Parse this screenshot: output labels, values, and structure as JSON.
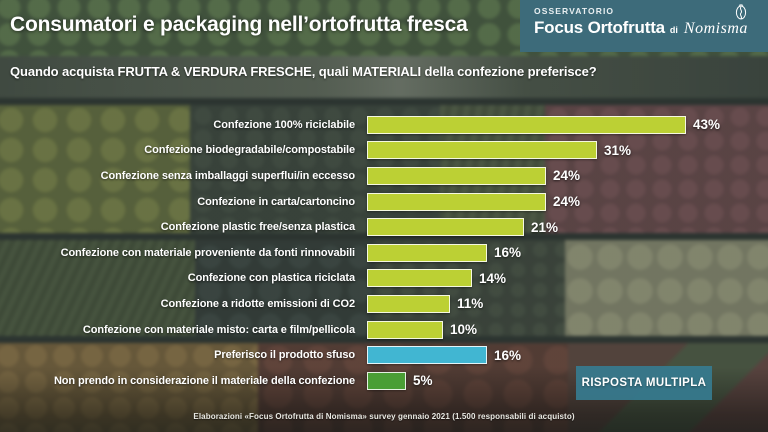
{
  "header": {
    "title": "Consumatori e packaging nell’ortofrutta fresca",
    "observatory": "OSSERVATORIO",
    "brand": "Focus Ortofrutta",
    "connector": "di",
    "logo_text": "Nomisma"
  },
  "question": "Quando acquista FRUTTA & VERDURA FRESCHE, quali MATERIALI della confezione preferisce?",
  "chart_data": {
    "type": "bar",
    "orientation": "horizontal",
    "title": "Quando acquista FRUTTA & VERDURA FRESCHE, quali MATERIALI della confezione preferisce?",
    "unit": "%",
    "xlim": [
      0,
      45
    ],
    "grid": false,
    "legend_position": "none",
    "categories": [
      "Confezione 100% riciclabile",
      "Confezione biodegradabile/compostabile",
      "Confezione senza imballaggi superflui/in eccesso",
      "Confezione in carta/cartoncino",
      "Confezione plastic free/senza plastica",
      "Confezione con materiale proveniente da fonti rinnovabili",
      "Confezione con plastica riciclata",
      "Confezione a ridotte emissioni di CO2",
      "Confezione con materiale misto: carta e film/pellicola",
      "Preferisco il prodotto sfuso",
      "Non prendo in considerazione il materiale della confezione"
    ],
    "values": [
      43,
      31,
      24,
      24,
      21,
      16,
      14,
      11,
      10,
      16,
      5
    ],
    "value_labels": [
      "43%",
      "31%",
      "24%",
      "24%",
      "21%",
      "16%",
      "14%",
      "11%",
      "10%",
      "16%",
      "5%"
    ],
    "bar_colors": [
      "#bcd034",
      "#bcd034",
      "#bcd034",
      "#bcd034",
      "#bcd034",
      "#bcd034",
      "#bcd034",
      "#bcd034",
      "#bcd034",
      "#41b6d2",
      "#4a9e35"
    ]
  },
  "badge": "RISPOSTA MULTIPLA",
  "footer": "Elaborazioni «Focus Ortofrutta di Nomisma» survey gennaio 2021 (1.500 responsabili di acquisto)",
  "colors": {
    "bar_default": "#bcd034",
    "bar_loose_product": "#41b6d2",
    "bar_no_consideration": "#4a9e35",
    "logo_box": "#3d6b7a",
    "badge_bg": "#377b90"
  }
}
